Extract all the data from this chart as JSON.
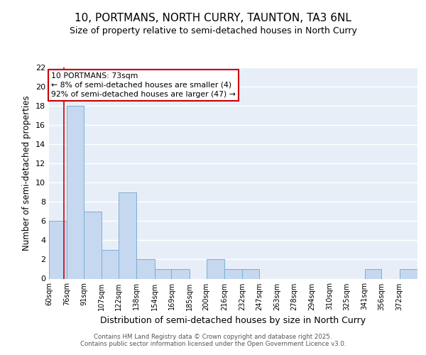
{
  "title": "10, PORTMANS, NORTH CURRY, TAUNTON, TA3 6NL",
  "subtitle": "Size of property relative to semi-detached houses in North Curry",
  "xlabel": "Distribution of semi-detached houses by size in North Curry",
  "ylabel": "Number of semi-detached properties",
  "bins": [
    60,
    76,
    91,
    107,
    122,
    138,
    154,
    169,
    185,
    200,
    216,
    232,
    247,
    263,
    278,
    294,
    310,
    325,
    341,
    356,
    372
  ],
  "values": [
    6,
    18,
    7,
    3,
    9,
    2,
    1,
    1,
    0,
    2,
    1,
    1,
    0,
    0,
    0,
    0,
    0,
    0,
    1,
    0,
    1
  ],
  "bar_color": "#c5d8f0",
  "bar_edge_color": "#7aafd4",
  "property_value": 73,
  "vline_color": "#cc0000",
  "annotation_line1": "10 PORTMANS: 73sqm",
  "annotation_line2": "← 8% of semi-detached houses are smaller (4)",
  "annotation_line3": "92% of semi-detached houses are larger (47) →",
  "annotation_box_color": "#cc0000",
  "ylim": [
    0,
    22
  ],
  "yticks": [
    0,
    2,
    4,
    6,
    8,
    10,
    12,
    14,
    16,
    18,
    20,
    22
  ],
  "background_color": "#e8eef8",
  "grid_color": "#ffffff",
  "footer": "Contains HM Land Registry data © Crown copyright and database right 2025.\nContains public sector information licensed under the Open Government Licence v3.0.",
  "tick_labels": [
    "60sqm",
    "76sqm",
    "91sqm",
    "107sqm",
    "122sqm",
    "138sqm",
    "154sqm",
    "169sqm",
    "185sqm",
    "200sqm",
    "216sqm",
    "232sqm",
    "247sqm",
    "263sqm",
    "278sqm",
    "294sqm",
    "310sqm",
    "325sqm",
    "341sqm",
    "356sqm",
    "372sqm"
  ]
}
